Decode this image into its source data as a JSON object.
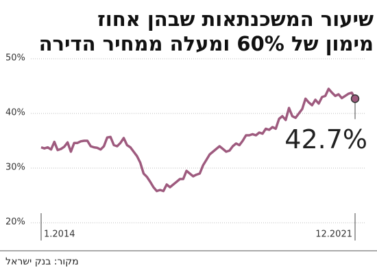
{
  "chart_data": {
    "type": "line",
    "title": [
      "שיעור המשכנתאות שבהן אחוז",
      "מימון של 60% ומעלה ממחיר הדירה"
    ],
    "source": "מקור: בנק ישראל",
    "categories": [
      "1.2014",
      null,
      null,
      null,
      null,
      null,
      null,
      null,
      null,
      null,
      null,
      null,
      null,
      null,
      null,
      null,
      null,
      null,
      null,
      null,
      null,
      null,
      null,
      null,
      null,
      null,
      null,
      null,
      null,
      null,
      null,
      null,
      null,
      null,
      null,
      null,
      null,
      null,
      null,
      null,
      null,
      null,
      null,
      null,
      null,
      null,
      null,
      null,
      null,
      null,
      null,
      null,
      null,
      null,
      null,
      null,
      null,
      null,
      null,
      null,
      null,
      null,
      null,
      null,
      null,
      null,
      null,
      null,
      null,
      null,
      null,
      null,
      null,
      null,
      null,
      null,
      null,
      null,
      null,
      null,
      null,
      null,
      null,
      null,
      null,
      null,
      null,
      null,
      null,
      null,
      null,
      null,
      null,
      null,
      null,
      "12.2021"
    ],
    "series": [
      {
        "color": "#9e5a7e",
        "values": [
          33.8,
          33.6,
          33.8,
          33.4,
          34.8,
          33.3,
          33.5,
          33.9,
          34.7,
          33.0,
          34.6,
          34.6,
          34.9,
          35.0,
          35.0,
          34.0,
          33.8,
          33.7,
          33.4,
          34.0,
          35.6,
          35.7,
          34.2,
          34.0,
          34.6,
          35.5,
          34.2,
          33.8,
          33.0,
          32.2,
          31.0,
          29.0,
          28.4,
          27.5,
          26.5,
          25.8,
          26.0,
          25.8,
          27.0,
          26.5,
          27.0,
          27.5,
          28.0,
          28.0,
          29.5,
          29.0,
          28.5,
          28.8,
          29.0,
          30.5,
          31.5,
          32.5,
          33.0,
          33.5,
          34.0,
          33.5,
          33.0,
          33.2,
          34.0,
          34.5,
          34.2,
          35.0,
          36.0,
          36.0,
          36.2,
          36.0,
          36.5,
          36.3,
          37.2,
          37.0,
          37.5,
          37.2,
          39.0,
          39.5,
          38.8,
          41.0,
          39.5,
          39.2,
          40.0,
          40.8,
          42.7,
          42.0,
          41.5,
          42.5,
          41.8,
          43.0,
          43.2,
          44.5,
          43.8,
          43.2,
          43.5,
          42.8,
          43.2,
          43.6,
          43.8,
          42.7
        ],
        "value_labels": [
          null,
          null,
          null,
          null,
          null,
          null,
          null,
          null,
          null,
          null,
          null,
          null,
          null,
          null,
          null,
          null,
          null,
          null,
          null,
          null,
          null,
          null,
          null,
          null,
          null,
          null,
          null,
          null,
          null,
          null,
          null,
          null,
          null,
          null,
          null,
          null,
          null,
          null,
          null,
          null,
          null,
          null,
          null,
          null,
          null,
          null,
          null,
          null,
          null,
          null,
          null,
          null,
          null,
          null,
          null,
          null,
          null,
          null,
          null,
          null,
          null,
          null,
          null,
          null,
          null,
          null,
          null,
          null,
          null,
          null,
          null,
          null,
          null,
          null,
          null,
          null,
          null,
          null,
          null,
          null,
          null,
          null,
          null,
          null,
          null,
          null,
          null,
          null,
          null,
          null,
          null,
          null,
          null,
          null,
          null,
          "42.7%"
        ]
      }
    ],
    "ylim": [
      20,
      50
    ],
    "yticks": [
      {
        "value": 20,
        "label": "20%"
      },
      {
        "value": 30,
        "label": "30%"
      },
      {
        "value": 40,
        "label": "40%"
      },
      {
        "value": 50,
        "label": "50%"
      }
    ],
    "grid": true
  }
}
